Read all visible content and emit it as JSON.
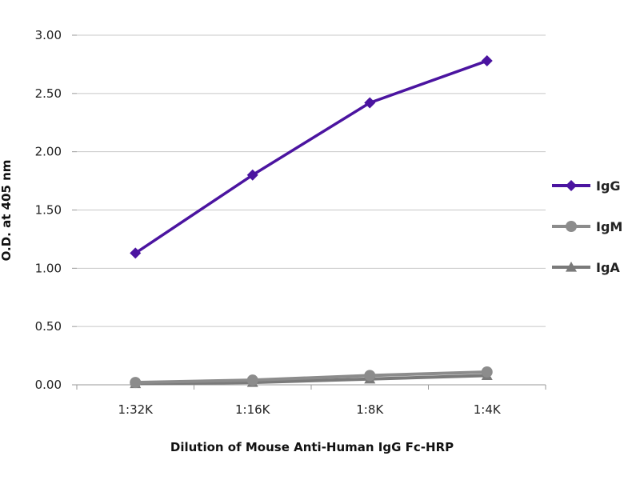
{
  "chart_data": {
    "type": "line",
    "categories": [
      "1:32K",
      "1:16K",
      "1:8K",
      "1:4K"
    ],
    "xlabel": "Dilution of Mouse Anti-Human IgG Fc-HRP",
    "ylabel": "O.D. at 405 nm",
    "ylim": [
      0,
      3
    ],
    "yticks": [
      "0.00",
      "0.50",
      "1.00",
      "1.50",
      "2.00",
      "2.50",
      "3.00"
    ],
    "grid": true,
    "legend_position": "right",
    "series": [
      {
        "name": "IgG",
        "values": [
          1.13,
          1.8,
          2.42,
          2.78
        ],
        "color": "#4B14A0",
        "marker": "diamond"
      },
      {
        "name": "IgM",
        "values": [
          0.02,
          0.04,
          0.08,
          0.11
        ],
        "color": "#8C8C8C",
        "marker": "circle"
      },
      {
        "name": "IgA",
        "values": [
          0.01,
          0.02,
          0.05,
          0.08
        ],
        "color": "#7A7A7A",
        "marker": "triangle"
      }
    ]
  }
}
